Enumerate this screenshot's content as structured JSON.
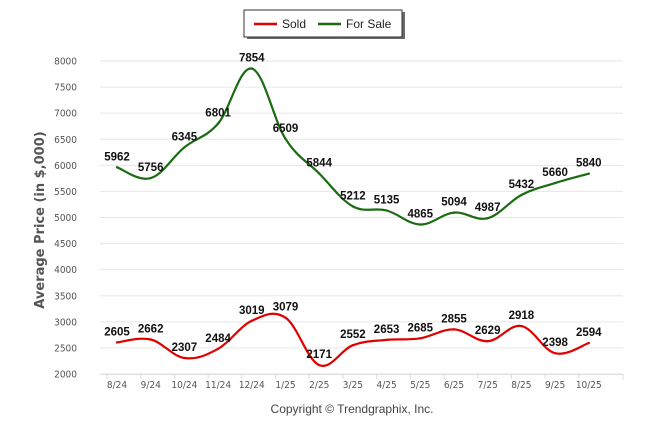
{
  "chart_data": {
    "type": "line",
    "title": "",
    "xlabel": "",
    "ylabel": "Average Price (in $,000)",
    "ylim": [
      2000,
      8000
    ],
    "yticks": [
      2000,
      2500,
      3000,
      3500,
      4000,
      4500,
      5000,
      5500,
      6000,
      6500,
      7000,
      7500,
      8000
    ],
    "grid": true,
    "legend_position": "top-center",
    "categories": [
      "8/24",
      "9/24",
      "10/24",
      "11/24",
      "12/24",
      "1/25",
      "2/25",
      "3/25",
      "4/25",
      "5/25",
      "6/25",
      "7/25",
      "8/25",
      "9/25",
      "10/25"
    ],
    "series": [
      {
        "name": "Sold",
        "color": "#e00000",
        "values": [
          2605,
          2662,
          2307,
          2484,
          3019,
          3079,
          2171,
          2552,
          2653,
          2685,
          2855,
          2629,
          2918,
          2398,
          2594
        ]
      },
      {
        "name": "For Sale",
        "color": "#1a6b12",
        "values": [
          5962,
          5756,
          6345,
          6801,
          7854,
          6509,
          5844,
          5212,
          5135,
          4865,
          5094,
          4987,
          5432,
          5660,
          5840
        ]
      }
    ],
    "footer": "Copyright © Trendgraphix, Inc."
  }
}
